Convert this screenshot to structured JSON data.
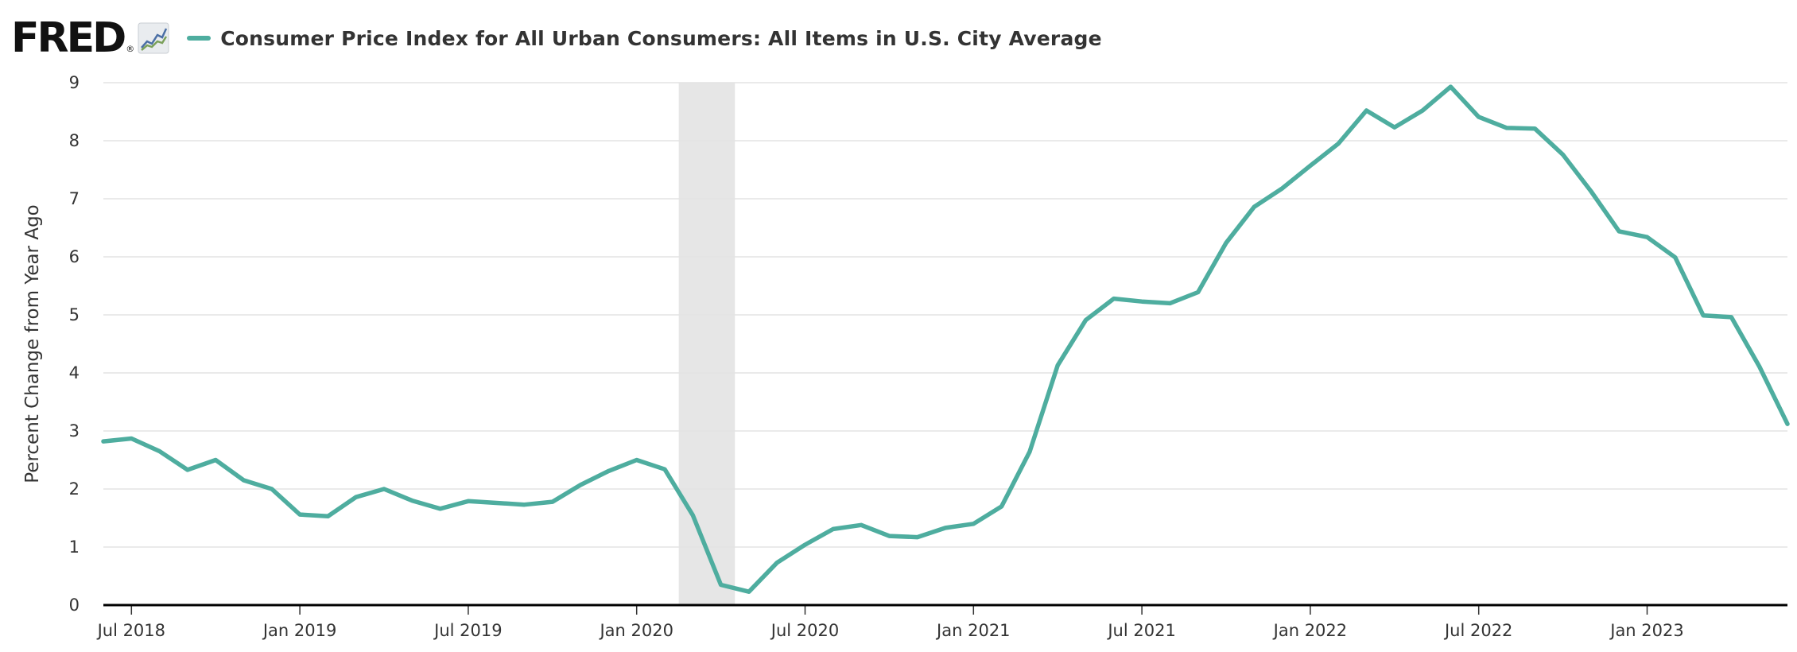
{
  "header": {
    "logo_text": "FRED",
    "logo_reg": "®",
    "logo_icon": "chart-line-icon"
  },
  "chart_data": {
    "type": "line",
    "title": "",
    "xlabel": "",
    "ylabel": "Percent Change from Year Ago",
    "ylim": [
      0,
      9
    ],
    "y_ticks": [
      0,
      1,
      2,
      3,
      4,
      5,
      6,
      7,
      8,
      9
    ],
    "x_range": [
      "2018-06",
      "2023-06"
    ],
    "x_ticks": [
      {
        "date": "2018-07",
        "label": "Jul 2018"
      },
      {
        "date": "2019-01",
        "label": "Jan 2019"
      },
      {
        "date": "2019-07",
        "label": "Jul 2019"
      },
      {
        "date": "2020-01",
        "label": "Jan 2020"
      },
      {
        "date": "2020-07",
        "label": "Jul 2020"
      },
      {
        "date": "2021-01",
        "label": "Jan 2021"
      },
      {
        "date": "2021-07",
        "label": "Jul 2021"
      },
      {
        "date": "2022-01",
        "label": "Jan 2022"
      },
      {
        "date": "2022-07",
        "label": "Jul 2022"
      },
      {
        "date": "2023-01",
        "label": "Jan 2023"
      }
    ],
    "grid": true,
    "legend_position": "top-left",
    "recession": {
      "start": "2020-02",
      "end": "2020-04"
    },
    "series": [
      {
        "name": "Consumer Price Index for All Urban Consumers: All Items in U.S. City Average",
        "color": "#4ead9f",
        "x": [
          "2018-06",
          "2018-07",
          "2018-08",
          "2018-09",
          "2018-10",
          "2018-11",
          "2018-12",
          "2019-01",
          "2019-02",
          "2019-03",
          "2019-04",
          "2019-05",
          "2019-06",
          "2019-07",
          "2019-08",
          "2019-09",
          "2019-10",
          "2019-11",
          "2019-12",
          "2020-01",
          "2020-02",
          "2020-03",
          "2020-04",
          "2020-05",
          "2020-06",
          "2020-07",
          "2020-08",
          "2020-09",
          "2020-10",
          "2020-11",
          "2020-12",
          "2021-01",
          "2021-02",
          "2021-03",
          "2021-04",
          "2021-05",
          "2021-06",
          "2021-07",
          "2021-08",
          "2021-09",
          "2021-10",
          "2021-11",
          "2021-12",
          "2022-01",
          "2022-02",
          "2022-03",
          "2022-04",
          "2022-05",
          "2022-06",
          "2022-07",
          "2022-08",
          "2022-09",
          "2022-10",
          "2022-11",
          "2022-12",
          "2023-01",
          "2023-02",
          "2023-03",
          "2023-04",
          "2023-05",
          "2023-06"
        ],
        "values": [
          2.82,
          2.87,
          2.65,
          2.33,
          2.5,
          2.15,
          2.0,
          1.56,
          1.53,
          1.86,
          2.0,
          1.8,
          1.66,
          1.79,
          1.76,
          1.73,
          1.78,
          2.07,
          2.31,
          2.5,
          2.34,
          1.55,
          0.35,
          0.23,
          0.73,
          1.04,
          1.31,
          1.38,
          1.19,
          1.17,
          1.33,
          1.4,
          1.7,
          2.64,
          4.13,
          4.91,
          5.28,
          5.23,
          5.2,
          5.39,
          6.24,
          6.86,
          7.18,
          7.57,
          7.95,
          8.52,
          8.23,
          8.52,
          8.93,
          8.41,
          8.22,
          8.21,
          7.76,
          7.13,
          6.44,
          6.34,
          5.99,
          4.99,
          4.96,
          4.11,
          3.12
        ]
      }
    ]
  }
}
